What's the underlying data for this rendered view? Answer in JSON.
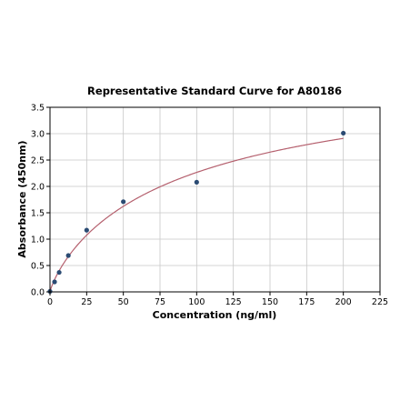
{
  "chart_data": {
    "type": "scatter",
    "title": "Representative Standard Curve for A80186",
    "xlabel": "Concentration (ng/ml)",
    "ylabel": "Absorbance (450nm)",
    "xlim": [
      0,
      225
    ],
    "ylim": [
      0,
      3.5
    ],
    "xticks": [
      0,
      25,
      50,
      75,
      100,
      125,
      150,
      175,
      200,
      225
    ],
    "yticks": [
      0.0,
      0.5,
      1.0,
      1.5,
      2.0,
      2.5,
      3.0,
      3.5
    ],
    "grid": true,
    "points": {
      "x": [
        0,
        3.125,
        6.25,
        12.5,
        25,
        50,
        100,
        200
      ],
      "y": [
        0.01,
        0.19,
        0.37,
        0.69,
        1.17,
        1.71,
        2.08,
        3.01
      ]
    },
    "fit_curve": {
      "type": "four-parameter-logistic",
      "a": 0.0,
      "b": 0.84,
      "c": 101.0,
      "d": 4.55
    },
    "colors": {
      "points": "#2b4b73",
      "curve": "#b5606e",
      "grid": "#c8c8c8"
    }
  }
}
